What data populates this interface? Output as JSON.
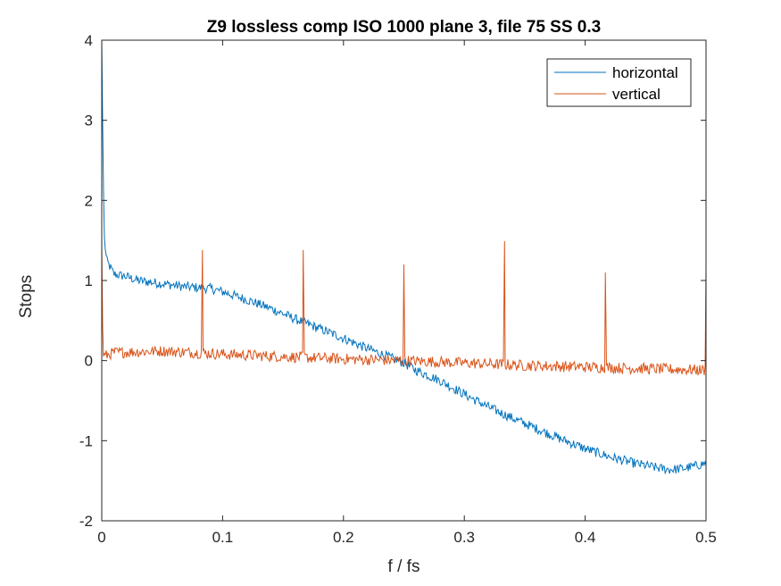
{
  "chart_data": {
    "type": "line",
    "title": "Z9 lossless comp ISO 1000 plane 3, file 75 SS 0.3",
    "xlabel": "f / fs",
    "ylabel": "Stops",
    "xlim": [
      0,
      0.5
    ],
    "ylim": [
      -2,
      4
    ],
    "x_ticks": [
      0,
      0.1,
      0.2,
      0.3,
      0.4,
      0.5
    ],
    "x_tick_labels": [
      "0",
      "0.1",
      "0.2",
      "0.3",
      "0.4",
      "0.5"
    ],
    "y_ticks": [
      -2,
      -1,
      0,
      1,
      2,
      3,
      4
    ],
    "y_tick_labels": [
      "-2",
      "-1",
      "0",
      "1",
      "2",
      "3",
      "4"
    ],
    "grid": false,
    "legend_position": "top-right",
    "series": [
      {
        "name": "horizontal",
        "color": "#0072BD",
        "x": [
          0,
          0.001,
          0.002,
          0.004,
          0.01,
          0.02,
          0.03,
          0.05,
          0.07,
          0.09,
          0.1,
          0.12,
          0.14,
          0.16,
          0.17,
          0.18,
          0.2,
          0.22,
          0.24,
          0.25,
          0.26,
          0.28,
          0.3,
          0.32,
          0.34,
          0.36,
          0.38,
          0.4,
          0.42,
          0.44,
          0.46,
          0.47,
          0.48,
          0.49,
          0.5
        ],
        "y": [
          4.0,
          2.6,
          1.55,
          1.25,
          1.08,
          1.05,
          1.0,
          0.96,
          0.92,
          0.9,
          0.86,
          0.76,
          0.65,
          0.52,
          0.46,
          0.4,
          0.28,
          0.15,
          0.03,
          -0.03,
          -0.12,
          -0.25,
          -0.42,
          -0.58,
          -0.72,
          -0.85,
          -0.98,
          -1.1,
          -1.2,
          -1.28,
          -1.34,
          -1.36,
          -1.35,
          -1.32,
          -1.28
        ],
        "noise": 0.06
      },
      {
        "name": "vertical",
        "color": "#D95319",
        "x": [
          0,
          0.001,
          0.01,
          0.05,
          0.1,
          0.15,
          0.2,
          0.25,
          0.3,
          0.35,
          0.4,
          0.45,
          0.5
        ],
        "y": [
          1.45,
          0.05,
          0.1,
          0.12,
          0.08,
          0.05,
          0.02,
          0.0,
          -0.03,
          -0.06,
          -0.08,
          -0.1,
          -0.12
        ],
        "noise": 0.07,
        "spikes": [
          {
            "x": 0.0833,
            "y": 1.38
          },
          {
            "x": 0.1667,
            "y": 1.38
          },
          {
            "x": 0.25,
            "y": 1.2
          },
          {
            "x": 0.3333,
            "y": 1.49
          },
          {
            "x": 0.4167,
            "y": 1.1
          },
          {
            "x": 0.5,
            "y": 1.18
          }
        ]
      }
    ]
  }
}
